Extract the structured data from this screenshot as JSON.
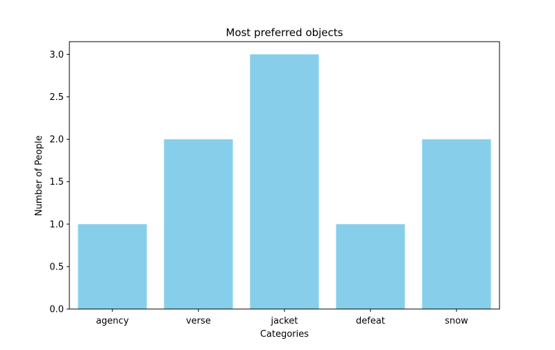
{
  "chart_data": {
    "type": "bar",
    "title": "Most preferred objects",
    "xlabel": "Categories",
    "ylabel": "Number of People",
    "categories": [
      "agency",
      "verse",
      "jacket",
      "defeat",
      "snow"
    ],
    "values": [
      1,
      2,
      3,
      1,
      2
    ],
    "ylim": [
      0,
      3.15
    ],
    "yticks": [
      0.0,
      0.5,
      1.0,
      1.5,
      2.0,
      2.5,
      3.0
    ],
    "ytick_labels": [
      "0.0",
      "0.5",
      "1.0",
      "1.5",
      "2.0",
      "2.5",
      "3.0"
    ],
    "grid": false,
    "bar_color": "#87CEEB"
  }
}
